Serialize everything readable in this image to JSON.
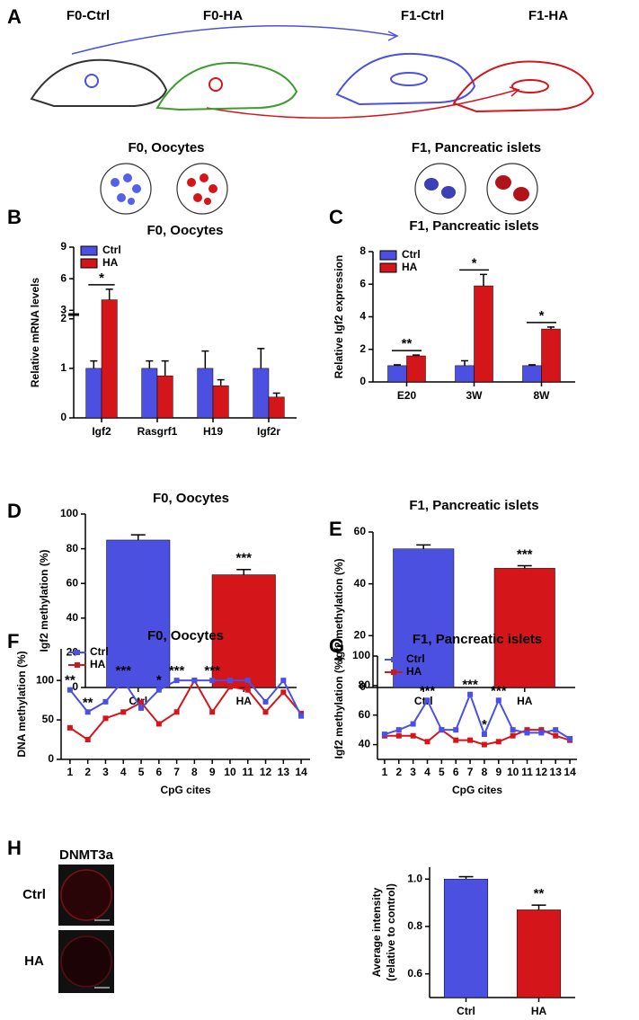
{
  "diagram": {
    "label": "A",
    "groups": [
      "F0-Ctrl",
      "F0-HA",
      "F1-Ctrl",
      "F1-HA"
    ],
    "captions": [
      "F0, Oocytes",
      "F1, Pancreatic islets"
    ]
  },
  "chart_data": [
    {
      "type": "bar",
      "label": "B",
      "title": "F0, Oocytes",
      "ylabel": "Relative mRNA levels",
      "categories": [
        "Igf2",
        "Rasgrf1",
        "H19",
        "Igf2r"
      ],
      "series": [
        {
          "name": "Ctrl",
          "color": "#4b50e0",
          "values": [
            1,
            1,
            1,
            1
          ],
          "errors": [
            0.15,
            0.15,
            0.35,
            0.4
          ]
        },
        {
          "name": "HA",
          "color": "#d4161b",
          "values": [
            4,
            0.85,
            0.65,
            0.42
          ],
          "errors": [
            1,
            0.3,
            0.12,
            0.08
          ]
        }
      ],
      "ylim": [
        0,
        9
      ],
      "ybreak": [
        2,
        3
      ],
      "yticks": [
        0,
        1,
        2,
        3,
        6,
        9
      ],
      "legend": "upper left",
      "annotations": [
        {
          "text": "*",
          "x": 0
        }
      ]
    },
    {
      "type": "bar",
      "label": "C",
      "title": "F1, Pancreatic islets",
      "ylabel": "Relative Igf2  expression",
      "categories": [
        "E20",
        "3W",
        "8W"
      ],
      "series": [
        {
          "name": "Ctrl",
          "color": "#4b50e0",
          "values": [
            1,
            1,
            1
          ],
          "errors": [
            0.05,
            0.3,
            0.05
          ]
        },
        {
          "name": "HA",
          "color": "#d4161b",
          "values": [
            1.6,
            5.9,
            3.25
          ],
          "errors": [
            0.05,
            0.7,
            0.12
          ]
        }
      ],
      "ylim": [
        0,
        8
      ],
      "yticks": [
        0,
        2,
        4,
        6,
        8
      ],
      "legend": "upper left",
      "annotations": [
        {
          "text": "**",
          "x": 0
        },
        {
          "text": "*",
          "x": 1
        },
        {
          "text": "*",
          "x": 2
        }
      ]
    },
    {
      "type": "bar",
      "label": "D",
      "title": "F0, Oocytes",
      "ylabel": "Igf2 methylation (%)",
      "categories": [
        "Ctrl",
        "HA"
      ],
      "values": [
        85,
        65
      ],
      "errors": [
        3,
        3
      ],
      "colors": [
        "#4b50e0",
        "#d4161b"
      ],
      "ylim": [
        0,
        100
      ],
      "yticks": [
        0,
        20,
        40,
        60,
        80,
        100
      ],
      "annotations": [
        {
          "text": "***",
          "x": 1
        }
      ]
    },
    {
      "type": "bar",
      "label": "E",
      "title": "F1, Pancreatic islets",
      "ylabel": "Igf2 methylation (%)",
      "categories": [
        "Ctrl",
        "HA"
      ],
      "values": [
        53.5,
        46
      ],
      "errors": [
        1.5,
        1
      ],
      "colors": [
        "#4b50e0",
        "#d4161b"
      ],
      "ylim": [
        0,
        60
      ],
      "yticks": [
        0,
        20,
        40,
        60
      ],
      "annotations": [
        {
          "text": "***",
          "x": 1
        }
      ]
    },
    {
      "type": "line",
      "label": "F",
      "title": "F0, Oocytes",
      "ylabel": "DNA methylation (%)",
      "xlabel": "CpG cites",
      "x": [
        1,
        2,
        3,
        4,
        5,
        6,
        7,
        8,
        9,
        10,
        11,
        12,
        13,
        14
      ],
      "series": [
        {
          "name": "Ctrl",
          "color": "#4b50e0",
          "values": [
            88,
            60,
            73,
            100,
            65,
            88,
            100,
            100,
            100,
            100,
            100,
            73,
            100,
            55
          ]
        },
        {
          "name": "HA",
          "color": "#d4161b",
          "values": [
            40,
            25,
            52,
            60,
            72,
            45,
            60,
            100,
            60,
            92,
            88,
            60,
            85,
            58
          ]
        }
      ],
      "xlim": [
        0.5,
        14.5
      ],
      "xticks": [
        1,
        2,
        3,
        4,
        5,
        6,
        7,
        8,
        9,
        10,
        11,
        12,
        13,
        14
      ],
      "ylim": [
        0,
        140
      ],
      "yticks": [
        0,
        50,
        100
      ],
      "legend": "upper left",
      "annotations": [
        {
          "text": "**",
          "x": 1
        },
        {
          "text": "**",
          "x": 2
        },
        {
          "text": "***",
          "x": 4
        },
        {
          "text": "*",
          "x": 6
        },
        {
          "text": "***",
          "x": 7
        },
        {
          "text": "***",
          "x": 9
        }
      ]
    },
    {
      "type": "line",
      "label": "G",
      "title": "F1, Pancreatic islets",
      "ylabel": "Igf2 methylation (%)",
      "xlabel": "CpG cites",
      "x": [
        1,
        2,
        3,
        4,
        5,
        6,
        7,
        8,
        9,
        10,
        11,
        12,
        13,
        14
      ],
      "series": [
        {
          "name": "Ctrl",
          "color": "#4b50e0",
          "values": [
            47,
            50,
            54,
            70,
            50,
            50,
            74,
            47,
            70,
            50,
            48,
            48,
            50,
            44
          ]
        },
        {
          "name": "HA",
          "color": "#d4161b",
          "values": [
            46,
            46,
            46,
            42,
            50,
            43,
            43,
            40,
            42,
            46,
            50,
            50,
            46,
            43
          ]
        }
      ],
      "xlim": [
        0.5,
        14.5
      ],
      "xticks": [
        1,
        2,
        3,
        4,
        5,
        6,
        7,
        8,
        9,
        10,
        11,
        12,
        13,
        14
      ],
      "ylim": [
        30,
        100
      ],
      "yticks": [
        40,
        60,
        80,
        100
      ],
      "legend": "upper left",
      "annotations": [
        {
          "text": "***",
          "x": 4
        },
        {
          "text": "***",
          "x": 7
        },
        {
          "text": "*",
          "x": 8
        },
        {
          "text": "***",
          "x": 9
        }
      ]
    },
    {
      "type": "bar",
      "label": "H",
      "image_title": "DNMT3a",
      "image_rows": [
        "Ctrl",
        "HA"
      ],
      "ylabel": [
        "Average intensity",
        "(relative to control)"
      ],
      "categories": [
        "Ctrl",
        "HA"
      ],
      "values": [
        1,
        0.87
      ],
      "errors": [
        0.01,
        0.02
      ],
      "colors": [
        "#4b50e0",
        "#d4161b"
      ],
      "ylim": [
        0.5,
        1.05
      ],
      "yticks": [
        0.6,
        0.8,
        {
          "value": 1,
          "label": "1.0"
        }
      ],
      "annotations": [
        {
          "text": "**",
          "x": 1
        }
      ]
    }
  ]
}
